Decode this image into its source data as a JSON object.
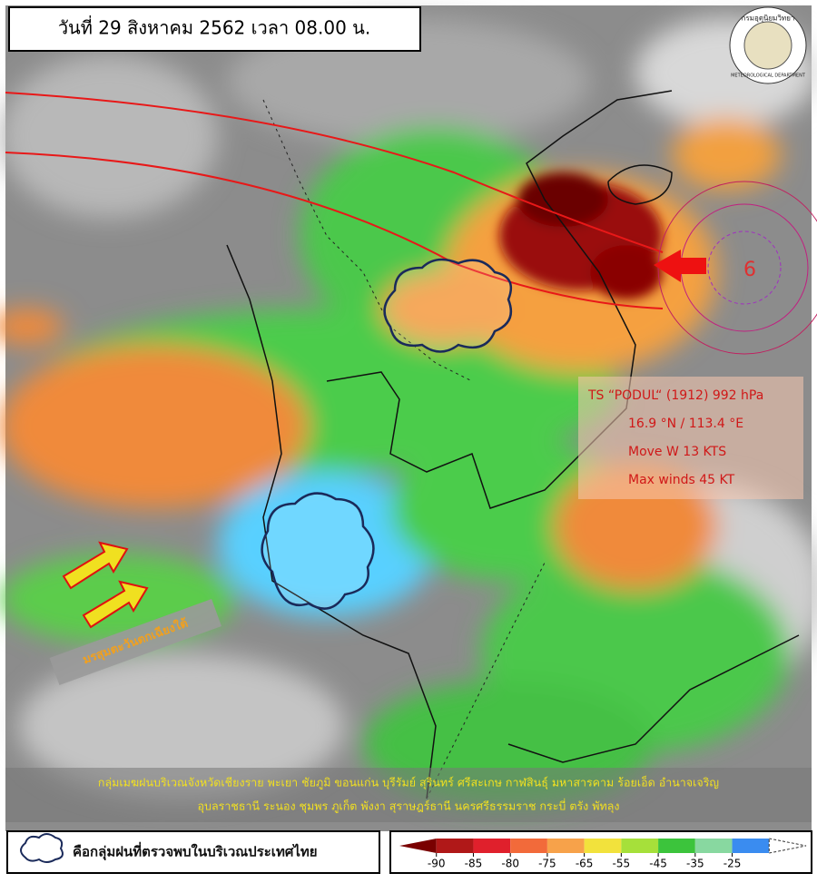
{
  "header": {
    "title": "วันที่ 29 สิงหาคม 2562 เวลา 08.00 น."
  },
  "logo": {
    "name_th": "กรมอุตุนิยมวิทยา",
    "name_en": "METEOROLOGICAL DEPARTMENT"
  },
  "storm": {
    "number": "6",
    "lines": [
      "TS “PODUL“ (1912) 992 hPa",
      "16.9 °N / 113.4 °E",
      "Move W 13 KTS",
      "Max winds 45 KT"
    ]
  },
  "monsoon_label": "มรสุมตะวันตกเฉียงใต้",
  "caption": {
    "lines": [
      "กลุ่มเมฆฝนบริเวณจังหวัดเชียงราย พะเยา ชัยภูมิ ขอนแก่น บุรีรัมย์ สุรินทร์ ศรีสะเกษ กาฬสินธุ์ มหาสารคาม ร้อยเอ็ด อำนาจเจริญ",
      "อุบลราชธานี ระนอง ชุมพร ภูเก็ต พังงา สุราษฎร์ธานี นครศรีธรรมราช กระบี่ ตรัง พัทลุง"
    ]
  },
  "legend": {
    "label": "คือกลุ่มฝนที่ตรวจพบในบริเวณประเทศไทย"
  },
  "colorbar": {
    "ticks": [
      -90,
      -85,
      -80,
      -75,
      -65,
      -55,
      -45,
      -35,
      -25
    ],
    "colors": [
      "#7a0000",
      "#b01818",
      "#e0202c",
      "#f26a3a",
      "#f7a24a",
      "#f2e23c",
      "#a6e03a",
      "#3cc43c",
      "#88d8a0",
      "#3a8cf0",
      "#ffffff"
    ]
  }
}
